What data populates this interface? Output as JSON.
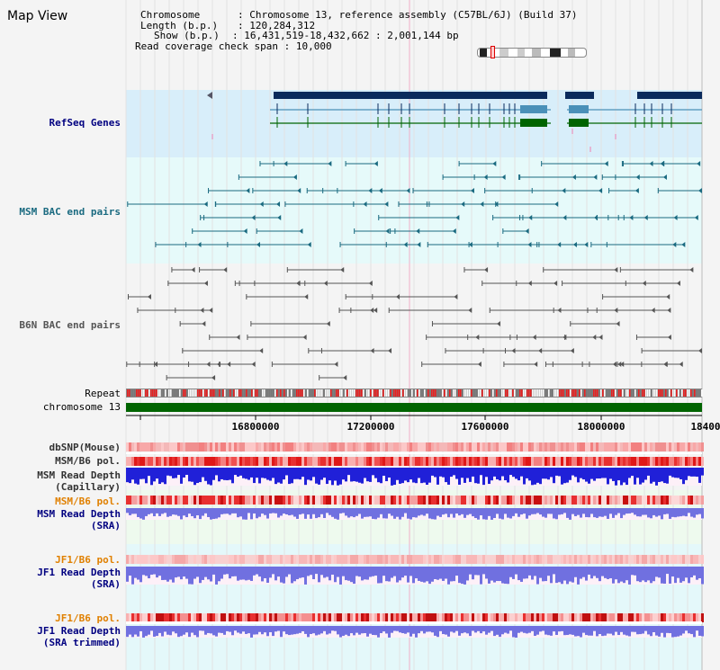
{
  "page_title": "Map View",
  "info": {
    "chromosome_label": "Chromosome",
    "chromosome_value": "Chromosome 13, reference assembly (C57BL/6J) (Build 37)",
    "length_label": "Length (b.p.)",
    "length_value": "120,284,312",
    "show_label": "Show (b.p.)",
    "show_value": "16,431,519-18,432,662 : 2,001,144 bp",
    "coverage_label": "Read coverage check span",
    "coverage_value": "10,000"
  },
  "tracks": {
    "refseq": "RefSeq Genes",
    "msm_bac": "MSM BAC end pairs",
    "b6n_bac": "B6N BAC end pairs",
    "repeat": "Repeat",
    "chromosome": "chromosome 13",
    "dbsnp": "dbSNP(Mouse)",
    "msm_b6_pol_1": "MSM/B6 pol.",
    "msm_depth_cap_1": "MSM Read Depth",
    "msm_depth_cap_2": "(Capillary)",
    "msm_b6_pol_2": "MSM/B6 pol.",
    "msm_depth_sra_1": "MSM Read Depth",
    "msm_depth_sra_2": "(SRA)",
    "jf1_b6_pol_1": "JF1/B6 pol.",
    "jf1_depth_1": "JF1 Read Depth",
    "jf1_depth_2": "(SRA)",
    "jf1_b6_pol_2": "JF1/B6 pol.",
    "jf1_trim_1": "JF1 Read Depth",
    "jf1_trim_2": "(SRA trimmed)"
  },
  "axis": {
    "ticks": [
      "16800000",
      "17200000",
      "17600000",
      "18000000",
      "18400"
    ]
  },
  "colors": {
    "refseq_bg": "#d8eefa",
    "msm_bg": "#e6fafa",
    "gene_dark": "#0a2a5c",
    "gene_mid": "#4a90b8",
    "gene_green": "#006400",
    "bac_msm": "#1a6a80",
    "bac_b6n": "#555555",
    "pol_red": "#e83030",
    "depth_blue": "#2020d8",
    "depth_light": "#7070e0",
    "label_msm": "#1a6a80",
    "label_navy": "#000080",
    "label_orange": "#e08000"
  }
}
